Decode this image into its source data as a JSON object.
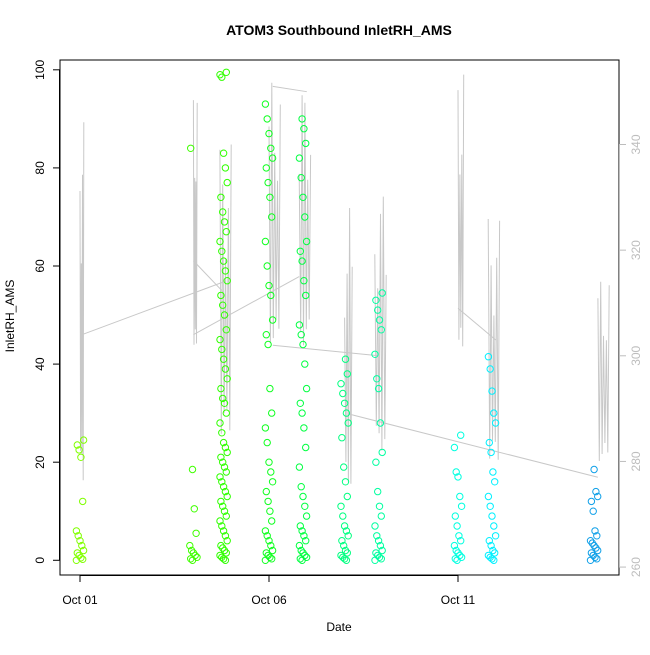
{
  "chart_data": {
    "type": "scatter",
    "title": "ATOM3 Southbound InletRH_AMS",
    "xlabel": "Date",
    "ylabel": "InletRH_AMS",
    "x_ticks": [
      "Oct 01",
      "Oct 06",
      "Oct 11"
    ],
    "y_ticks": [
      0,
      20,
      40,
      60,
      80,
      100
    ],
    "y2_ticks": [
      260,
      280,
      300,
      320,
      340
    ],
    "xlim": [
      "2016-10-01",
      "2016-10-15"
    ],
    "ylim": [
      -3,
      102
    ],
    "y2lim": [
      258.5,
      356
    ],
    "clusters": [
      {
        "date": "2016-10-01",
        "color": "#80FF00",
        "values": [
          0,
          0.2,
          0.5,
          1,
          1.5,
          2,
          3,
          4,
          5,
          6,
          12,
          21,
          22.5,
          23.5,
          24.5
        ]
      },
      {
        "date": "2016-10-04",
        "color": "#40FF00",
        "values": [
          0,
          0.3,
          0.6,
          1,
          1.5,
          2,
          3,
          5.5,
          10.5,
          18.5,
          84
        ]
      },
      {
        "date": "2016-10-04.8",
        "color": "#30FF00",
        "values": [
          0,
          0.3,
          0.6,
          1,
          1.5,
          2,
          2.5,
          3,
          4,
          5,
          6,
          7,
          8,
          9,
          10,
          11,
          12,
          13,
          14,
          15,
          16,
          17,
          18,
          19,
          20,
          21,
          22,
          23,
          24,
          26,
          28,
          30,
          32,
          33,
          35,
          37,
          39,
          41,
          43,
          45,
          47,
          50,
          52,
          54,
          57,
          59,
          61,
          63,
          65,
          67,
          69,
          71,
          74,
          77,
          80,
          83,
          98.5,
          99,
          99.5
        ]
      },
      {
        "date": "2016-10-06",
        "color": "#10FF20",
        "values": [
          0,
          0.3,
          0.6,
          1,
          1.5,
          2,
          3,
          4,
          5,
          6,
          8,
          10,
          12,
          14,
          16,
          18,
          20,
          24,
          27,
          30,
          35,
          44,
          46,
          49,
          54,
          56,
          60,
          65,
          70,
          74,
          77,
          80,
          82,
          84,
          87,
          90,
          93
        ]
      },
      {
        "date": "2016-10-06.9",
        "color": "#00FF40",
        "values": [
          0,
          0.3,
          0.6,
          1,
          1.5,
          2,
          3,
          4,
          5,
          6,
          7,
          9,
          11,
          13,
          15,
          19,
          23,
          27,
          30,
          32,
          35,
          40,
          44,
          46,
          48,
          54,
          57,
          61,
          63,
          65,
          70,
          74,
          78,
          82,
          85,
          88,
          90
        ]
      },
      {
        "date": "2016-10-08",
        "color": "#00FF80",
        "values": [
          0,
          0.3,
          0.6,
          1,
          1.5,
          2,
          3,
          4,
          5,
          6,
          7,
          9,
          11,
          13,
          16,
          19,
          25,
          28,
          30,
          32,
          34,
          36,
          38,
          41
        ]
      },
      {
        "date": "2016-10-08.9",
        "color": "#00FFA0",
        "values": [
          0,
          0.3,
          0.6,
          1,
          1.5,
          2,
          3,
          4,
          5,
          7,
          9,
          11,
          14,
          20,
          22,
          28,
          35,
          37,
          42,
          47,
          49,
          51,
          53,
          54.5
        ]
      },
      {
        "date": "2016-10-11",
        "color": "#00FFE0",
        "values": [
          0,
          0.3,
          0.6,
          1,
          1.5,
          2,
          3,
          4,
          5,
          7,
          9,
          11,
          13,
          17,
          18,
          23,
          25.5
        ]
      },
      {
        "date": "2016-10-11.9",
        "color": "#00F0FF",
        "values": [
          0,
          0.3,
          0.6,
          1,
          1.5,
          2,
          3,
          4,
          5,
          7,
          9,
          11,
          13,
          16,
          18,
          22,
          24,
          28,
          30,
          34.5,
          39,
          41.5
        ]
      },
      {
        "date": "2016-10-14.6",
        "color": "#10A0E8",
        "values": [
          0,
          0.3,
          0.6,
          1,
          1.5,
          2,
          2.5,
          3,
          3.5,
          4,
          5,
          6,
          10,
          12,
          13,
          14,
          18.5
        ]
      }
    ],
    "background_series": {
      "color": "#c8c8c8",
      "description_axis": "right",
      "segments": [
        {
          "x0": "2016-10-01",
          "x1": "2016-10-01.1",
          "ymin": 276,
          "ymax": 345
        },
        {
          "x0": "2016-10-04",
          "x1": "2016-10-04.1",
          "ymin": 300,
          "ymax": 350
        },
        {
          "x0": "2016-10-04.7",
          "x1": "2016-10-05",
          "ymin": 285,
          "ymax": 340
        },
        {
          "x0": "2016-10-06",
          "x1": "2016-10-06.3",
          "ymin": 302,
          "ymax": 352
        },
        {
          "x0": "2016-10-06.8",
          "x1": "2016-10-07.1",
          "ymin": 302,
          "ymax": 352
        },
        {
          "x0": "2016-10-08",
          "x1": "2016-10-08.2",
          "ymin": 275,
          "ymax": 328
        },
        {
          "x0": "2016-10-08.8",
          "x1": "2016-10-09.1",
          "ymin": 282,
          "ymax": 332
        },
        {
          "x0": "2016-10-11",
          "x1": "2016-10-11.15",
          "ymin": 300,
          "ymax": 354
        },
        {
          "x0": "2016-10-11.8",
          "x1": "2016-10-12.1",
          "ymin": 280,
          "ymax": 326
        },
        {
          "x0": "2016-10-14.7",
          "x1": "2016-10-15",
          "ymin": 280,
          "ymax": 315
        }
      ],
      "connectors": [
        [
          "2016-10-01.05",
          304,
          "2016-10-04.8",
          314
        ],
        [
          "2016-10-04",
          318,
          "2016-10-04.8",
          312
        ],
        [
          "2016-10-04",
          304,
          "2016-10-06.8",
          315
        ],
        [
          "2016-10-06.1",
          351,
          "2016-10-07",
          350
        ],
        [
          "2016-10-06.1",
          302,
          "2016-10-08.9",
          300
        ],
        [
          "2016-10-08.1",
          289,
          "2016-10-14.7",
          277
        ],
        [
          "2016-10-11",
          309,
          "2016-10-12",
          303
        ]
      ]
    }
  }
}
